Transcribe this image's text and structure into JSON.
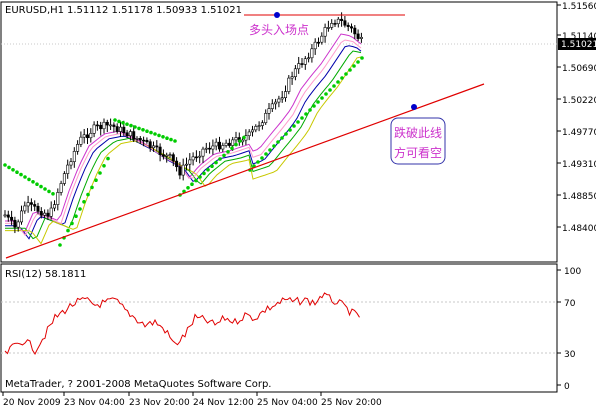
{
  "main_panel": {
    "symbol_label": "EURUSD,H1",
    "ohlc_label": "1.51112 1.51178 1.50933 1.51021",
    "current_price_badge": "1.51021",
    "price_axis_ticks": [
      "1.51560",
      "1.51140",
      "1.50690",
      "1.50220",
      "1.49770",
      "1.49310",
      "1.48850",
      "1.48400"
    ],
    "annotation_top": "多头入场点",
    "annotation_box_line1": "跌破此线",
    "annotation_box_line2": "方可看空"
  },
  "rsi_panel": {
    "label": "RSI(12) 58.1811",
    "axis_ticks": [
      "100",
      "70",
      "30",
      "0"
    ],
    "copyright": "MetaTrader, ? 2001-2008 MetaQuotes Software Corp."
  },
  "time_axis": {
    "ticks": [
      "20 Nov 2009",
      "23 Nov 04:00",
      "23 Nov 20:00",
      "24 Nov 12:00",
      "25 Nov 04:00",
      "25 Nov 20:00"
    ]
  },
  "colors": {
    "candle_bull": "#ffffff",
    "candle_bear": "#000000",
    "sar": "#00cc00",
    "rsi_line": "#e00000",
    "trendline": "#e00000",
    "annotation": "#cc33cc",
    "anchor_dot": "#0000cc",
    "ma_blue": "#0000aa",
    "ma_magenta": "#cc33cc",
    "ma_green": "#00aa00",
    "ma_yellow": "#c8c800",
    "ma_pink": "#ff99cc"
  }
}
